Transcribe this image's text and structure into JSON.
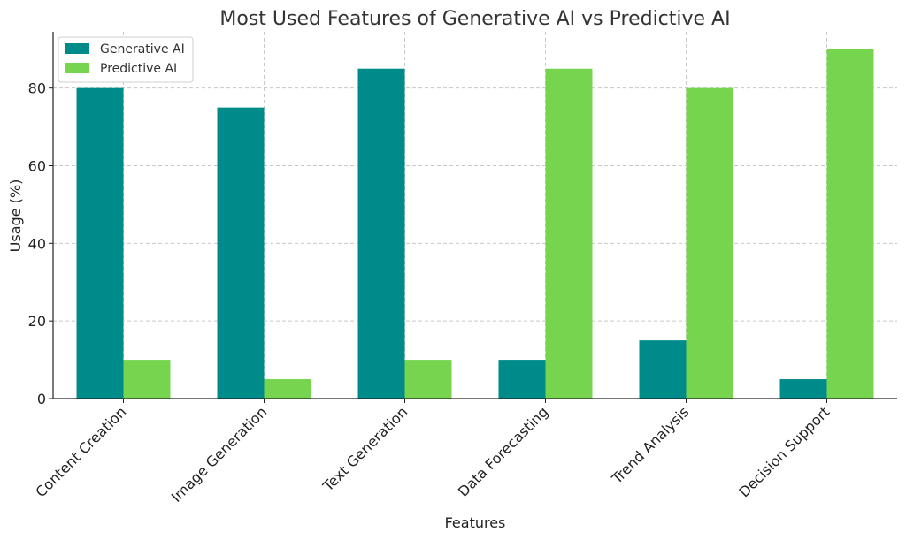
{
  "chart_data": {
    "type": "bar",
    "title": "Most Used Features of Generative AI vs Predictive AI",
    "xlabel": "Features",
    "ylabel": "Usage (%)",
    "categories": [
      "Content Creation",
      "Image Generation",
      "Text Generation",
      "Data Forecasting",
      "Trend Analysis",
      "Decision Support"
    ],
    "series": [
      {
        "name": "Generative AI",
        "color": "#008b8b",
        "values": [
          80,
          75,
          85,
          10,
          15,
          5
        ]
      },
      {
        "name": "Predictive AI",
        "color": "#76d44f",
        "values": [
          10,
          5,
          10,
          85,
          80,
          90
        ]
      }
    ],
    "ylim": [
      0,
      94.5
    ],
    "yticks": [
      0,
      20,
      40,
      60,
      80
    ],
    "grid": true,
    "legend_position": "top-left"
  }
}
